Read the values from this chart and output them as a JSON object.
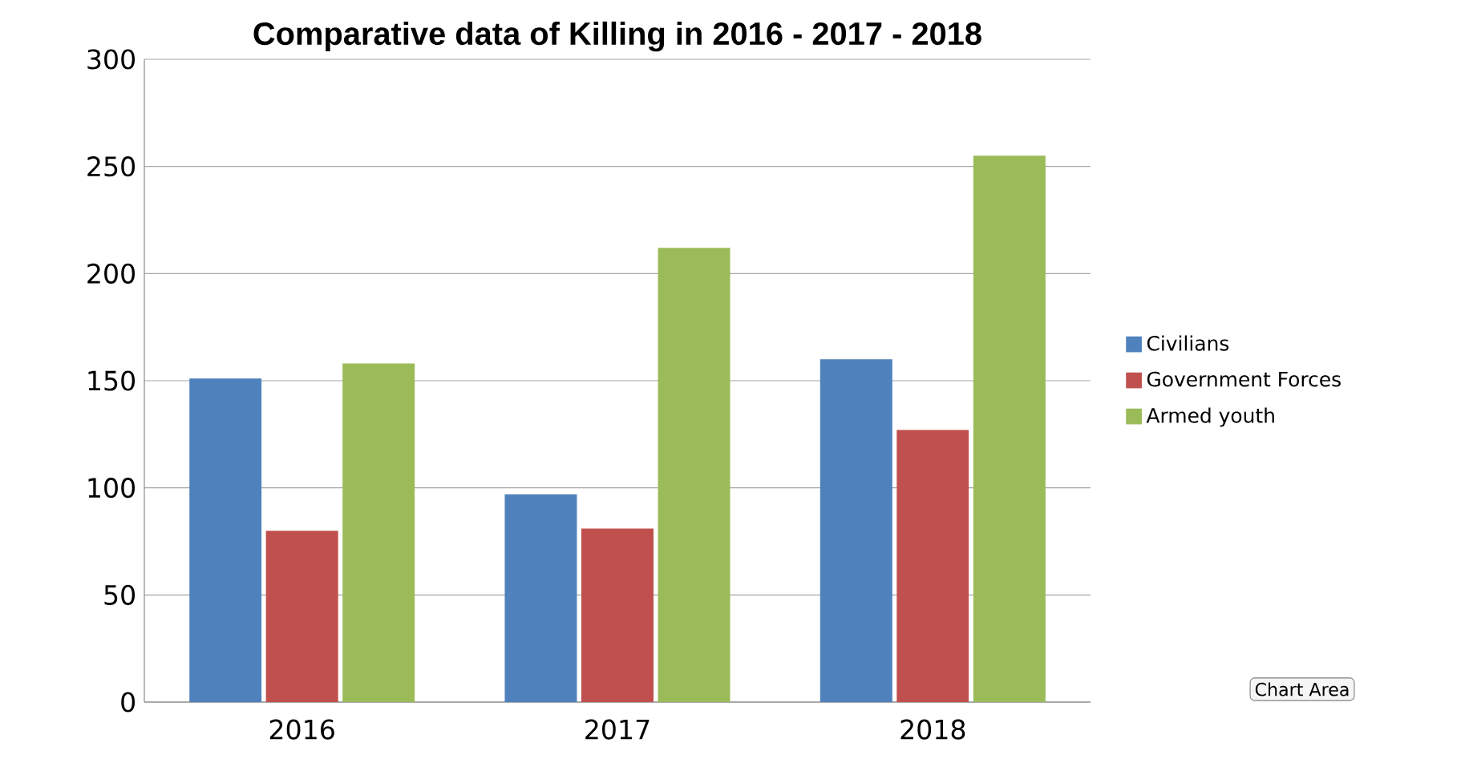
{
  "chart_data": {
    "type": "bar",
    "title": "Comparative data of Killing in 2016 - 2017 - 2018",
    "categories": [
      "2016",
      "2017",
      "2018"
    ],
    "series": [
      {
        "name": "Civilians",
        "color": "#4f81bd",
        "values": [
          151,
          97,
          160
        ]
      },
      {
        "name": "Government Forces",
        "color": "#c0504d",
        "values": [
          80,
          81,
          127
        ]
      },
      {
        "name": "Armed youth",
        "color": "#9bbb59",
        "values": [
          158,
          212,
          255
        ]
      }
    ],
    "ylim": [
      0,
      300
    ],
    "yticks": [
      0,
      50,
      100,
      150,
      200,
      250,
      300
    ],
    "grid": "y",
    "legend": "right",
    "annotations": [
      "Chart Area"
    ]
  }
}
